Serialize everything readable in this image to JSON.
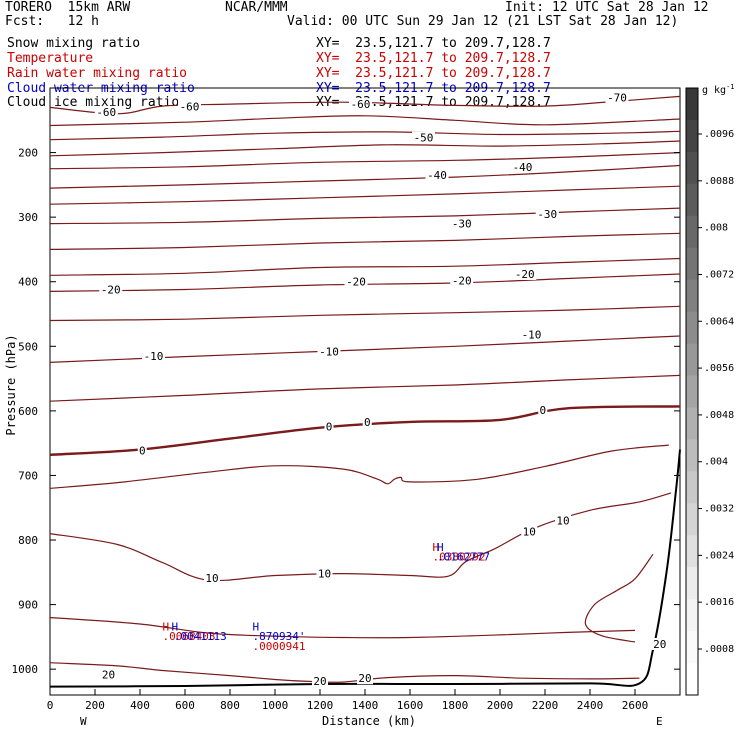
{
  "header": {
    "model": "TORERO  15km ARW",
    "org": "NCAR/MMM",
    "init": "Init: 12 UTC Sat 28 Jan 12",
    "fcst": "Fcst:   12 h",
    "valid": "Valid: 00 UTC Sun 29 Jan 12 (21 LST Sat 28 Jan 12)"
  },
  "fields": [
    {
      "name": "Snow mixing ratio",
      "xy": "XY=  23.5,121.7 to 209.7,128.7",
      "color": "#000000"
    },
    {
      "name": "Temperature",
      "xy": "XY=  23.5,121.7 to 209.7,128.7",
      "color": "#cc0000"
    },
    {
      "name": "Rain water mixing ratio",
      "xy": "XY=  23.5,121.7 to 209.7,128.7",
      "color": "#cc0000"
    },
    {
      "name": "Cloud water mixing ratio",
      "xy": "XY=  23.5,121.7 to 209.7,128.7",
      "color": "#0000cc"
    },
    {
      "name": "Cloud ice mixing ratio",
      "xy": "XY=  23.5,121.7 to 209.7,128.7",
      "color": "#000000"
    }
  ],
  "chart_data": {
    "type": "contour-cross-section",
    "xlabel": "Distance (km)",
    "ylabel": "Pressure (hPa)",
    "xlim": [
      0,
      2800
    ],
    "ylim": [
      1040,
      100
    ],
    "x_ticks": [
      0,
      200,
      400,
      600,
      800,
      1000,
      1200,
      1400,
      1600,
      1800,
      2000,
      2200,
      2400,
      2600
    ],
    "y_ticks": [
      200,
      300,
      400,
      500,
      600,
      700,
      800,
      900,
      1000
    ],
    "x_end_labels": {
      "left": "W",
      "right": "E"
    },
    "contour_labels": [
      {
        "text": "-60",
        "x": 250,
        "p": 137
      },
      {
        "text": "-60",
        "x": 620,
        "p": 129
      },
      {
        "text": "-60",
        "x": 1380,
        "p": 125
      },
      {
        "text": "-70",
        "x": 2520,
        "p": 115
      },
      {
        "text": "-50",
        "x": 1660,
        "p": 177
      },
      {
        "text": "-40",
        "x": 1720,
        "p": 235
      },
      {
        "text": "-40",
        "x": 2100,
        "p": 222
      },
      {
        "text": "-30",
        "x": 1830,
        "p": 310
      },
      {
        "text": "-30",
        "x": 2210,
        "p": 295
      },
      {
        "text": "-20",
        "x": 270,
        "p": 412
      },
      {
        "text": "-20",
        "x": 1360,
        "p": 400
      },
      {
        "text": "-20",
        "x": 1830,
        "p": 398
      },
      {
        "text": "-20",
        "x": 2110,
        "p": 388
      },
      {
        "text": "-10",
        "x": 460,
        "p": 515
      },
      {
        "text": "-10",
        "x": 1240,
        "p": 508
      },
      {
        "text": "-10",
        "x": 2140,
        "p": 482
      },
      {
        "text": "0",
        "x": 410,
        "p": 661
      },
      {
        "text": "0",
        "x": 1240,
        "p": 624
      },
      {
        "text": "0",
        "x": 1410,
        "p": 617
      },
      {
        "text": "0",
        "x": 2190,
        "p": 599
      },
      {
        "text": "10",
        "x": 720,
        "p": 859
      },
      {
        "text": "10",
        "x": 1220,
        "p": 852
      },
      {
        "text": "10",
        "x": 2130,
        "p": 787
      },
      {
        "text": "10",
        "x": 2280,
        "p": 770
      },
      {
        "text": "20",
        "x": 260,
        "p": 1008
      },
      {
        "text": "20",
        "x": 1200,
        "p": 1018
      },
      {
        "text": "20",
        "x": 1400,
        "p": 1014
      },
      {
        "text": "20",
        "x": 2710,
        "p": 961
      }
    ],
    "contour_lines": [
      {
        "level": -60,
        "bold": false,
        "points": [
          [
            0,
            130
          ],
          [
            300,
            140
          ],
          [
            500,
            128
          ],
          [
            800,
            125
          ],
          [
            1300,
            122
          ],
          [
            1800,
            127
          ],
          [
            2200,
            128
          ],
          [
            2500,
            121
          ],
          [
            2800,
            113
          ]
        ]
      },
      {
        "level": -60,
        "bold": false,
        "points": [
          [
            0,
            158
          ],
          [
            600,
            153
          ],
          [
            1000,
            147
          ],
          [
            1400,
            143
          ],
          [
            1800,
            150
          ],
          [
            2200,
            157
          ],
          [
            2800,
            148
          ]
        ]
      },
      {
        "level": -55,
        "bold": false,
        "points": [
          [
            0,
            180
          ],
          [
            500,
            176
          ],
          [
            1000,
            170
          ],
          [
            1500,
            168
          ],
          [
            2000,
            172
          ],
          [
            2500,
            170
          ],
          [
            2800,
            167
          ]
        ]
      },
      {
        "level": -50,
        "bold": false,
        "points": [
          [
            0,
            205
          ],
          [
            500,
            200
          ],
          [
            1000,
            194
          ],
          [
            1500,
            188
          ],
          [
            2000,
            190
          ],
          [
            2500,
            186
          ],
          [
            2800,
            182
          ]
        ]
      },
      {
        "level": -45,
        "bold": false,
        "points": [
          [
            0,
            225
          ],
          [
            600,
            222
          ],
          [
            1200,
            215
          ],
          [
            1800,
            212
          ],
          [
            2300,
            207
          ],
          [
            2800,
            200
          ]
        ]
      },
      {
        "level": -40,
        "bold": false,
        "points": [
          [
            0,
            255
          ],
          [
            600,
            250
          ],
          [
            1200,
            244
          ],
          [
            1800,
            238
          ],
          [
            2300,
            230
          ],
          [
            2800,
            220
          ]
        ]
      },
      {
        "level": -35,
        "bold": false,
        "points": [
          [
            0,
            280
          ],
          [
            600,
            276
          ],
          [
            1200,
            270
          ],
          [
            1800,
            264
          ],
          [
            2300,
            258
          ],
          [
            2800,
            252
          ]
        ]
      },
      {
        "level": -30,
        "bold": false,
        "points": [
          [
            0,
            310
          ],
          [
            600,
            308
          ],
          [
            1200,
            302
          ],
          [
            1800,
            298
          ],
          [
            2300,
            292
          ],
          [
            2800,
            286
          ]
        ]
      },
      {
        "level": -25,
        "bold": false,
        "points": [
          [
            0,
            350
          ],
          [
            600,
            347
          ],
          [
            1200,
            340
          ],
          [
            1800,
            336
          ],
          [
            2300,
            330
          ],
          [
            2800,
            325
          ]
        ]
      },
      {
        "level": -20,
        "bold": false,
        "points": [
          [
            0,
            390
          ],
          [
            600,
            387
          ],
          [
            1200,
            378
          ],
          [
            1800,
            376
          ],
          [
            2300,
            370
          ],
          [
            2800,
            364
          ]
        ]
      },
      {
        "level": -20,
        "bold": false,
        "points": [
          [
            0,
            415
          ],
          [
            600,
            412
          ],
          [
            1200,
            405
          ],
          [
            1800,
            402
          ],
          [
            2300,
            395
          ],
          [
            2800,
            388
          ]
        ]
      },
      {
        "level": -15,
        "bold": false,
        "points": [
          [
            0,
            460
          ],
          [
            600,
            458
          ],
          [
            1200,
            452
          ],
          [
            1800,
            448
          ],
          [
            2300,
            444
          ],
          [
            2800,
            438
          ]
        ]
      },
      {
        "level": -10,
        "bold": false,
        "points": [
          [
            0,
            525
          ],
          [
            600,
            516
          ],
          [
            1200,
            508
          ],
          [
            1800,
            500
          ],
          [
            2300,
            492
          ],
          [
            2800,
            484
          ]
        ]
      },
      {
        "level": -5,
        "bold": false,
        "points": [
          [
            0,
            585
          ],
          [
            600,
            576
          ],
          [
            1200,
            566
          ],
          [
            1800,
            560
          ],
          [
            2300,
            552
          ],
          [
            2800,
            545
          ]
        ]
      },
      {
        "level": 0,
        "bold": true,
        "points": [
          [
            0,
            668
          ],
          [
            400,
            660
          ],
          [
            800,
            643
          ],
          [
            1200,
            626
          ],
          [
            1600,
            617
          ],
          [
            2000,
            614
          ],
          [
            2300,
            596
          ],
          [
            2800,
            593
          ]
        ]
      },
      {
        "level": 5,
        "bold": false,
        "points": [
          [
            0,
            720
          ],
          [
            300,
            711
          ],
          [
            700,
            695
          ],
          [
            1000,
            685
          ],
          [
            1300,
            690
          ],
          [
            1450,
            705
          ],
          [
            1500,
            713
          ],
          [
            1530,
            706
          ],
          [
            1560,
            703
          ],
          [
            1600,
            710
          ],
          [
            1900,
            706
          ],
          [
            2200,
            686
          ],
          [
            2500,
            662
          ],
          [
            2750,
            653
          ]
        ]
      },
      {
        "level": 10,
        "bold": false,
        "points": [
          [
            0,
            790
          ],
          [
            300,
            807
          ],
          [
            500,
            835
          ],
          [
            700,
            862
          ],
          [
            1000,
            855
          ],
          [
            1300,
            852
          ],
          [
            1600,
            855
          ],
          [
            1770,
            856
          ],
          [
            1850,
            833
          ],
          [
            1980,
            813
          ],
          [
            2150,
            782
          ],
          [
            2400,
            754
          ],
          [
            2620,
            741
          ],
          [
            2760,
            727
          ]
        ]
      },
      {
        "level": 15,
        "bold": false,
        "points": [
          [
            0,
            920
          ],
          [
            400,
            930
          ],
          [
            700,
            944
          ],
          [
            1000,
            949
          ],
          [
            1300,
            951
          ],
          [
            1600,
            951
          ],
          [
            2000,
            947
          ],
          [
            2300,
            943
          ],
          [
            2600,
            940
          ]
        ]
      },
      {
        "level": 20,
        "bold": false,
        "points": [
          [
            0,
            990
          ],
          [
            300,
            995
          ],
          [
            500,
            1002
          ],
          [
            800,
            1010
          ],
          [
            1000,
            1016
          ],
          [
            1150,
            1019
          ],
          [
            1300,
            1020
          ],
          [
            1500,
            1013
          ],
          [
            1800,
            1010
          ],
          [
            2100,
            1014
          ],
          [
            2400,
            1015
          ],
          [
            2620,
            1014
          ]
        ]
      },
      {
        "level": 20,
        "bold": false,
        "points": [
          [
            2600,
            958
          ],
          [
            2450,
            948
          ],
          [
            2380,
            930
          ],
          [
            2420,
            900
          ],
          [
            2520,
            878
          ],
          [
            2600,
            860
          ],
          [
            2680,
            822
          ]
        ]
      }
    ],
    "terrain": {
      "points": [
        [
          0,
          1027
        ],
        [
          600,
          1026
        ],
        [
          1200,
          1023
        ],
        [
          1800,
          1023
        ],
        [
          2400,
          1022
        ],
        [
          2620,
          1022
        ],
        [
          2680,
          970
        ],
        [
          2740,
          850
        ],
        [
          2780,
          730
        ],
        [
          2800,
          660
        ]
      ]
    },
    "markers": [
      {
        "text": "H",
        "x": 500,
        "p": 940,
        "color": "#cc0000"
      },
      {
        "text": "H",
        "x": 540,
        "p": 940,
        "color": "#0000cc"
      },
      {
        "text": ".0068403",
        "x": 500,
        "p": 955,
        "color": "#cc0000"
      },
      {
        "text": ".0041113",
        "x": 550,
        "p": 955,
        "color": "#0000cc"
      },
      {
        "text": "H",
        "x": 900,
        "p": 940,
        "color": "#0000cc"
      },
      {
        "text": ".870934'",
        "x": 900,
        "p": 955,
        "color": "#0000cc"
      },
      {
        "text": ".0000941",
        "x": 900,
        "p": 970,
        "color": "#cc0000"
      },
      {
        "text": "H",
        "x": 1700,
        "p": 817,
        "color": "#cc0000"
      },
      {
        "text": "H",
        "x": 1720,
        "p": 817,
        "color": "#0000cc"
      },
      {
        "text": ".0380292",
        "x": 1700,
        "p": 832,
        "color": "#cc0000"
      },
      {
        "text": ".0162777",
        "x": 1720,
        "p": 832,
        "color": "#0000cc"
      }
    ]
  },
  "colorbar": {
    "unit": "g kg",
    "unit_exponent": "-1",
    "labels": [
      ".0096",
      ".0088",
      ".008",
      ".0072",
      ".0064",
      ".0056",
      ".0048",
      ".004",
      ".0032",
      ".0024",
      ".0016",
      ".0008"
    ],
    "shades": [
      "#383838",
      "#444444",
      "#505050",
      "#5c5c5c",
      "#686868",
      "#747474",
      "#808080",
      "#8c8c8c",
      "#989898",
      "#a4a4a4",
      "#b0b0b0",
      "#bcbcbc",
      "#c8c8c8",
      "#d4d4d4",
      "#e0e0e0",
      "#ececec",
      "#f4f4f4",
      "#fafafa",
      "#ffffff"
    ],
    "colors": {
      "contour": "#7a1a1a",
      "terrain": "#000000"
    }
  }
}
